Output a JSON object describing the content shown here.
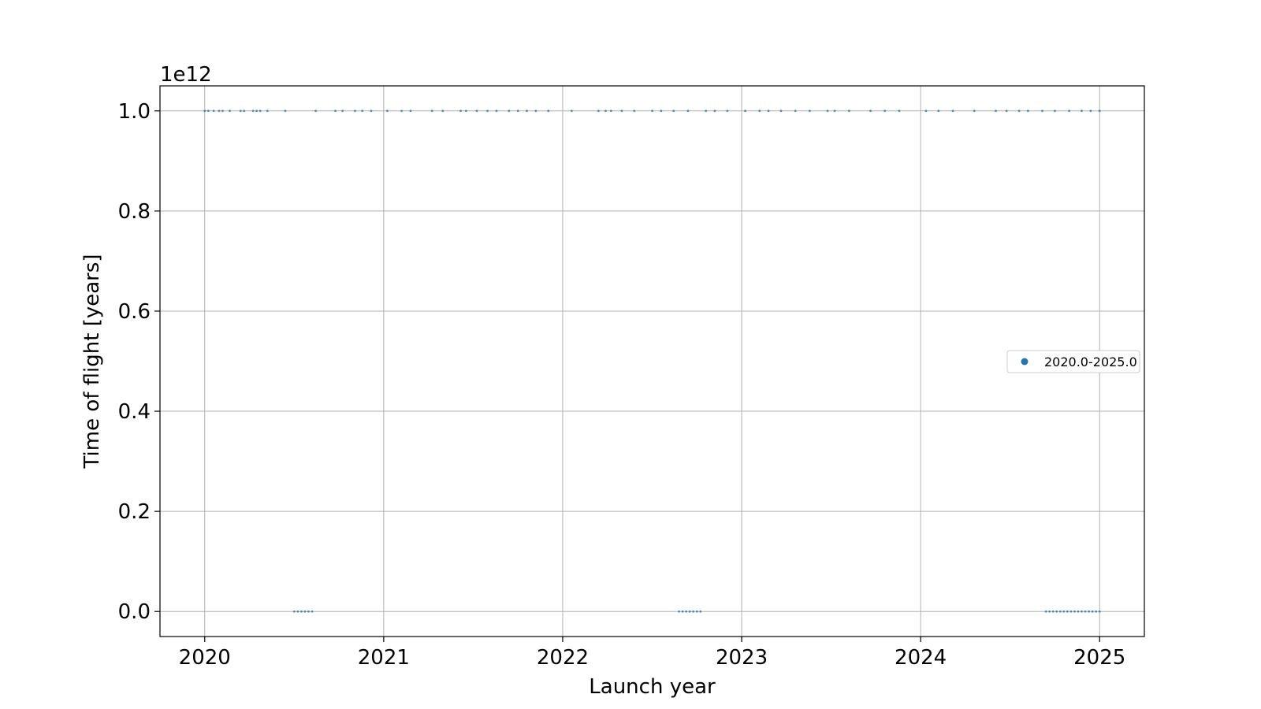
{
  "chart_data": {
    "type": "scatter",
    "title": "",
    "xlabel": "Launch year",
    "ylabel": "Time of flight [years]",
    "y_offset_label": "1e12",
    "xlim": [
      2019.75,
      2025.25
    ],
    "ylim": [
      -0.05,
      1.05
    ],
    "x_ticks": [
      2020,
      2021,
      2022,
      2023,
      2024,
      2025
    ],
    "x_tick_labels": [
      "2020",
      "2021",
      "2022",
      "2023",
      "2024",
      "2025"
    ],
    "y_ticks": [
      0.0,
      0.2,
      0.4,
      0.6,
      0.8,
      1.0
    ],
    "y_tick_labels": [
      "0.0",
      "0.2",
      "0.4",
      "0.6",
      "0.8",
      "1.0"
    ],
    "grid": true,
    "legend_position": "center-right",
    "colors": {
      "series": "#1f77b4",
      "grid": "#b0b0b0",
      "axis": "#000000"
    },
    "series": [
      {
        "name": "2020.0-2025.0",
        "scale": 1000000000000.0,
        "points": [
          [
            2020.0,
            1.0
          ],
          [
            2020.02,
            1.0
          ],
          [
            2020.05,
            1.0
          ],
          [
            2020.08,
            1.0
          ],
          [
            2020.1,
            1.0
          ],
          [
            2020.14,
            1.0
          ],
          [
            2020.2,
            1.0
          ],
          [
            2020.22,
            1.0
          ],
          [
            2020.27,
            1.0
          ],
          [
            2020.29,
            1.0
          ],
          [
            2020.31,
            1.0
          ],
          [
            2020.35,
            1.0
          ],
          [
            2020.45,
            1.0
          ],
          [
            2020.62,
            1.0
          ],
          [
            2020.73,
            1.0
          ],
          [
            2020.77,
            1.0
          ],
          [
            2020.84,
            1.0
          ],
          [
            2020.88,
            1.0
          ],
          [
            2020.93,
            1.0
          ],
          [
            2021.02,
            1.0
          ],
          [
            2021.1,
            1.0
          ],
          [
            2021.15,
            1.0
          ],
          [
            2021.27,
            1.0
          ],
          [
            2021.33,
            1.0
          ],
          [
            2021.43,
            1.0
          ],
          [
            2021.46,
            1.0
          ],
          [
            2021.52,
            1.0
          ],
          [
            2021.58,
            1.0
          ],
          [
            2021.63,
            1.0
          ],
          [
            2021.7,
            1.0
          ],
          [
            2021.75,
            1.0
          ],
          [
            2021.8,
            1.0
          ],
          [
            2021.85,
            1.0
          ],
          [
            2021.92,
            1.0
          ],
          [
            2022.05,
            1.0
          ],
          [
            2022.2,
            1.0
          ],
          [
            2022.24,
            1.0
          ],
          [
            2022.27,
            1.0
          ],
          [
            2022.33,
            1.0
          ],
          [
            2022.4,
            1.0
          ],
          [
            2022.5,
            1.0
          ],
          [
            2022.55,
            1.0
          ],
          [
            2022.62,
            1.0
          ],
          [
            2022.7,
            1.0
          ],
          [
            2022.8,
            1.0
          ],
          [
            2022.85,
            1.0
          ],
          [
            2022.92,
            1.0
          ],
          [
            2023.02,
            1.0
          ],
          [
            2023.1,
            1.0
          ],
          [
            2023.15,
            1.0
          ],
          [
            2023.22,
            1.0
          ],
          [
            2023.3,
            1.0
          ],
          [
            2023.38,
            1.0
          ],
          [
            2023.48,
            1.0
          ],
          [
            2023.52,
            1.0
          ],
          [
            2023.6,
            1.0
          ],
          [
            2023.72,
            1.0
          ],
          [
            2023.8,
            1.0
          ],
          [
            2023.88,
            1.0
          ],
          [
            2024.03,
            1.0
          ],
          [
            2024.1,
            1.0
          ],
          [
            2024.18,
            1.0
          ],
          [
            2024.3,
            1.0
          ],
          [
            2024.42,
            1.0
          ],
          [
            2024.48,
            1.0
          ],
          [
            2024.55,
            1.0
          ],
          [
            2024.6,
            1.0
          ],
          [
            2024.68,
            1.0
          ],
          [
            2024.75,
            1.0
          ],
          [
            2024.83,
            1.0
          ],
          [
            2024.9,
            1.0
          ],
          [
            2024.95,
            1.0
          ],
          [
            2025.0,
            1.0
          ],
          [
            2020.5,
            0.0
          ],
          [
            2020.52,
            0.0
          ],
          [
            2020.54,
            0.0
          ],
          [
            2020.56,
            0.0
          ],
          [
            2020.58,
            0.0
          ],
          [
            2020.6,
            0.0
          ],
          [
            2022.65,
            0.0
          ],
          [
            2022.67,
            0.0
          ],
          [
            2022.69,
            0.0
          ],
          [
            2022.71,
            0.0
          ],
          [
            2022.73,
            0.0
          ],
          [
            2022.75,
            0.0
          ],
          [
            2022.77,
            0.0
          ],
          [
            2024.7,
            0.0
          ],
          [
            2024.72,
            0.0
          ],
          [
            2024.74,
            0.0
          ],
          [
            2024.76,
            0.0
          ],
          [
            2024.78,
            0.0
          ],
          [
            2024.8,
            0.0
          ],
          [
            2024.82,
            0.0
          ],
          [
            2024.84,
            0.0
          ],
          [
            2024.86,
            0.0
          ],
          [
            2024.88,
            0.0
          ],
          [
            2024.9,
            0.0
          ],
          [
            2024.92,
            0.0
          ],
          [
            2024.94,
            0.0
          ],
          [
            2024.96,
            0.0
          ],
          [
            2024.98,
            0.0
          ],
          [
            2025.0,
            0.0
          ]
        ]
      }
    ]
  }
}
